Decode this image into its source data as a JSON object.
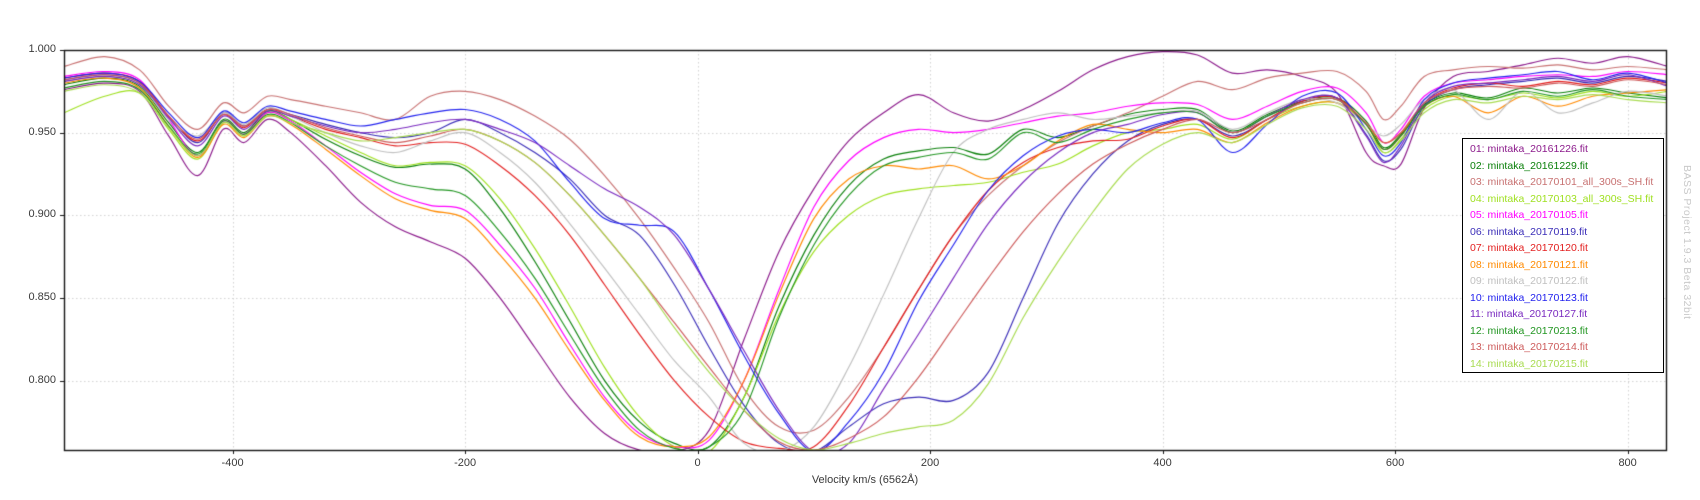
{
  "app": {
    "watermark": "BASS Project 1.9.3 Beta 32bit"
  },
  "chart_data": {
    "type": "line",
    "title": "",
    "xlabel": "Velocity km/s (6562Å)",
    "ylabel": "",
    "xlim": [
      -545,
      833
    ],
    "ylim": [
      0.758,
      1.0
    ],
    "xticks": [
      -400,
      -200,
      0,
      200,
      400,
      600,
      800
    ],
    "xtick_labels": [
      "-400",
      "-200",
      "0",
      "200",
      "400",
      "600",
      "800"
    ],
    "yticks": [
      1.0,
      0.95,
      0.9,
      0.85,
      0.8
    ],
    "ytick_labels": [
      "1.000",
      "0.950",
      "0.900",
      "0.850",
      "0.800"
    ],
    "grid": "dotted",
    "legend_position": "right-inside",
    "x": [
      -545,
      -510,
      -480,
      -455,
      -430,
      -408,
      -390,
      -370,
      -350,
      -320,
      -290,
      -260,
      -230,
      -200,
      -170,
      -140,
      -110,
      -80,
      -50,
      -20,
      10,
      40,
      70,
      100,
      130,
      160,
      190,
      220,
      250,
      280,
      310,
      340,
      370,
      400,
      430,
      460,
      490,
      520,
      550,
      575,
      590,
      605,
      625,
      650,
      680,
      710,
      740,
      770,
      800,
      835
    ],
    "series": [
      {
        "name": "01: mintaka_20161226.fit",
        "color": "#8B1A8B",
        "values": [
          0.976,
          0.98,
          0.975,
          0.948,
          0.924,
          0.952,
          0.944,
          0.958,
          0.95,
          0.93,
          0.908,
          0.893,
          0.884,
          0.874,
          0.85,
          0.82,
          0.79,
          0.768,
          0.758,
          0.757,
          0.77,
          0.825,
          0.878,
          0.916,
          0.945,
          0.962,
          0.973,
          0.962,
          0.957,
          0.964,
          0.975,
          0.988,
          0.996,
          0.999,
          0.997,
          0.986,
          0.988,
          0.984,
          0.974,
          0.938,
          0.93,
          0.931,
          0.965,
          0.984,
          0.987,
          0.991,
          0.995,
          0.992,
          0.996,
          0.99
        ]
      },
      {
        "name": "02: mintaka_20161229.fit",
        "color": "#0B800B",
        "values": [
          0.979,
          0.983,
          0.978,
          0.956,
          0.938,
          0.958,
          0.95,
          0.963,
          0.958,
          0.946,
          0.936,
          0.929,
          0.931,
          0.928,
          0.904,
          0.872,
          0.836,
          0.8,
          0.775,
          0.762,
          0.76,
          0.79,
          0.845,
          0.888,
          0.918,
          0.934,
          0.939,
          0.941,
          0.937,
          0.952,
          0.947,
          0.954,
          0.961,
          0.964,
          0.964,
          0.951,
          0.961,
          0.969,
          0.971,
          0.957,
          0.941,
          0.949,
          0.967,
          0.974,
          0.971,
          0.977,
          0.974,
          0.977,
          0.974,
          0.971
        ]
      },
      {
        "name": "03: mintaka_20170101_all_300s_SH.fit",
        "color": "#C87272",
        "values": [
          0.99,
          0.996,
          0.988,
          0.966,
          0.952,
          0.968,
          0.962,
          0.972,
          0.97,
          0.966,
          0.962,
          0.958,
          0.972,
          0.975,
          0.97,
          0.96,
          0.946,
          0.924,
          0.898,
          0.868,
          0.835,
          0.795,
          0.772,
          0.77,
          0.79,
          0.82,
          0.855,
          0.888,
          0.912,
          0.93,
          0.944,
          0.954,
          0.962,
          0.972,
          0.981,
          0.976,
          0.983,
          0.986,
          0.987,
          0.975,
          0.958,
          0.966,
          0.984,
          0.988,
          0.99,
          0.989,
          0.991,
          0.988,
          0.99,
          0.988
        ]
      },
      {
        "name": "04: mintaka_20170103_all_300s_SH.fit",
        "color": "#9FE020",
        "values": [
          0.962,
          0.972,
          0.974,
          0.952,
          0.934,
          0.956,
          0.948,
          0.962,
          0.958,
          0.948,
          0.938,
          0.93,
          0.932,
          0.93,
          0.91,
          0.88,
          0.845,
          0.808,
          0.778,
          0.76,
          0.757,
          0.79,
          0.84,
          0.878,
          0.9,
          0.912,
          0.916,
          0.918,
          0.92,
          0.926,
          0.931,
          0.942,
          0.95,
          0.952,
          0.955,
          0.946,
          0.958,
          0.966,
          0.968,
          0.955,
          0.938,
          0.946,
          0.964,
          0.972,
          0.97,
          0.974,
          0.971,
          0.975,
          0.972,
          0.975
        ]
      },
      {
        "name": "05: mintaka_20170105.fit",
        "color": "#FF00FF",
        "values": [
          0.984,
          0.987,
          0.982,
          0.958,
          0.936,
          0.957,
          0.949,
          0.962,
          0.957,
          0.942,
          0.926,
          0.913,
          0.906,
          0.903,
          0.882,
          0.856,
          0.822,
          0.79,
          0.768,
          0.76,
          0.764,
          0.8,
          0.855,
          0.905,
          0.933,
          0.947,
          0.952,
          0.95,
          0.952,
          0.956,
          0.96,
          0.962,
          0.966,
          0.968,
          0.967,
          0.958,
          0.966,
          0.975,
          0.977,
          0.962,
          0.944,
          0.952,
          0.972,
          0.98,
          0.982,
          0.984,
          0.985,
          0.984,
          0.987,
          0.985
        ]
      },
      {
        "name": "06: mintaka_20170119.fit",
        "color": "#3B2EB8",
        "values": [
          0.982,
          0.985,
          0.98,
          0.96,
          0.944,
          0.962,
          0.954,
          0.964,
          0.961,
          0.955,
          0.95,
          0.947,
          0.95,
          0.958,
          0.95,
          0.938,
          0.922,
          0.9,
          0.888,
          0.858,
          0.82,
          0.785,
          0.762,
          0.757,
          0.772,
          0.786,
          0.79,
          0.788,
          0.805,
          0.85,
          0.895,
          0.925,
          0.945,
          0.955,
          0.958,
          0.948,
          0.958,
          0.969,
          0.971,
          0.949,
          0.933,
          0.94,
          0.966,
          0.976,
          0.979,
          0.981,
          0.983,
          0.98,
          0.984,
          0.981
        ]
      },
      {
        "name": "07: mintaka_20170120.fit",
        "color": "#E32020",
        "values": [
          0.983,
          0.986,
          0.981,
          0.96,
          0.945,
          0.961,
          0.953,
          0.964,
          0.96,
          0.952,
          0.947,
          0.942,
          0.944,
          0.943,
          0.93,
          0.912,
          0.888,
          0.858,
          0.828,
          0.8,
          0.778,
          0.763,
          0.759,
          0.76,
          0.785,
          0.82,
          0.855,
          0.888,
          0.915,
          0.932,
          0.941,
          0.945,
          0.946,
          0.954,
          0.958,
          0.947,
          0.958,
          0.969,
          0.971,
          0.955,
          0.94,
          0.948,
          0.968,
          0.977,
          0.98,
          0.978,
          0.981,
          0.979,
          0.983,
          0.98
        ]
      },
      {
        "name": "08: mintaka_20170121.fit",
        "color": "#FF8A00",
        "values": [
          0.98,
          0.983,
          0.977,
          0.954,
          0.935,
          0.955,
          0.947,
          0.96,
          0.955,
          0.94,
          0.924,
          0.91,
          0.903,
          0.898,
          0.876,
          0.85,
          0.818,
          0.788,
          0.766,
          0.76,
          0.766,
          0.8,
          0.852,
          0.898,
          0.922,
          0.93,
          0.928,
          0.93,
          0.922,
          0.93,
          0.945,
          0.955,
          0.952,
          0.95,
          0.952,
          0.944,
          0.956,
          0.966,
          0.968,
          0.955,
          0.944,
          0.95,
          0.966,
          0.972,
          0.962,
          0.972,
          0.966,
          0.972,
          0.974,
          0.976
        ]
      },
      {
        "name": "09: mintaka_20170122.fit",
        "color": "#C0C0C0",
        "values": [
          0.981,
          0.984,
          0.979,
          0.958,
          0.948,
          0.962,
          0.955,
          0.965,
          0.96,
          0.95,
          0.942,
          0.938,
          0.945,
          0.95,
          0.938,
          0.92,
          0.895,
          0.868,
          0.84,
          0.812,
          0.79,
          0.762,
          0.757,
          0.772,
          0.808,
          0.852,
          0.898,
          0.938,
          0.952,
          0.958,
          0.962,
          0.958,
          0.96,
          0.962,
          0.963,
          0.952,
          0.962,
          0.97,
          0.968,
          0.955,
          0.948,
          0.955,
          0.97,
          0.976,
          0.958,
          0.975,
          0.962,
          0.968,
          0.975,
          0.972
        ]
      },
      {
        "name": "10: mintaka_20170123.fit",
        "color": "#2222EE",
        "values": [
          0.983,
          0.986,
          0.981,
          0.962,
          0.947,
          0.963,
          0.956,
          0.966,
          0.963,
          0.958,
          0.954,
          0.958,
          0.962,
          0.964,
          0.958,
          0.945,
          0.92,
          0.898,
          0.894,
          0.89,
          0.855,
          0.815,
          0.78,
          0.757,
          0.775,
          0.805,
          0.848,
          0.882,
          0.915,
          0.936,
          0.948,
          0.952,
          0.95,
          0.956,
          0.958,
          0.938,
          0.955,
          0.972,
          0.974,
          0.952,
          0.936,
          0.944,
          0.97,
          0.98,
          0.983,
          0.985,
          0.987,
          0.982,
          0.986,
          0.98
        ]
      },
      {
        "name": "11: mintaka_20170127.fit",
        "color": "#7A2BC0",
        "values": [
          0.981,
          0.984,
          0.979,
          0.959,
          0.942,
          0.96,
          0.952,
          0.963,
          0.96,
          0.954,
          0.95,
          0.952,
          0.956,
          0.958,
          0.952,
          0.944,
          0.93,
          0.916,
          0.905,
          0.888,
          0.855,
          0.818,
          0.782,
          0.757,
          0.762,
          0.795,
          0.828,
          0.862,
          0.895,
          0.92,
          0.938,
          0.95,
          0.955,
          0.961,
          0.962,
          0.95,
          0.96,
          0.97,
          0.971,
          0.948,
          0.932,
          0.942,
          0.968,
          0.978,
          0.98,
          0.982,
          0.984,
          0.981,
          0.985,
          0.978
        ]
      },
      {
        "name": "12: mintaka_20170213.fit",
        "color": "#229622",
        "values": [
          0.977,
          0.981,
          0.976,
          0.954,
          0.937,
          0.957,
          0.949,
          0.961,
          0.956,
          0.942,
          0.93,
          0.92,
          0.916,
          0.912,
          0.89,
          0.862,
          0.828,
          0.795,
          0.77,
          0.759,
          0.76,
          0.782,
          0.838,
          0.882,
          0.912,
          0.93,
          0.935,
          0.938,
          0.934,
          0.95,
          0.944,
          0.952,
          0.958,
          0.962,
          0.962,
          0.95,
          0.96,
          0.968,
          0.97,
          0.955,
          0.94,
          0.948,
          0.966,
          0.973,
          0.97,
          0.975,
          0.972,
          0.976,
          0.972,
          0.97
        ]
      },
      {
        "name": "13: mintaka_20170214.fit",
        "color": "#CD5C5C",
        "values": [
          0.982,
          0.985,
          0.98,
          0.96,
          0.946,
          0.961,
          0.954,
          0.964,
          0.961,
          0.953,
          0.948,
          0.944,
          0.948,
          0.952,
          0.945,
          0.932,
          0.912,
          0.888,
          0.862,
          0.835,
          0.808,
          0.782,
          0.763,
          0.758,
          0.765,
          0.778,
          0.802,
          0.832,
          0.862,
          0.89,
          0.913,
          0.931,
          0.943,
          0.952,
          0.958,
          0.95,
          0.958,
          0.968,
          0.97,
          0.956,
          0.944,
          0.95,
          0.968,
          0.976,
          0.978,
          0.977,
          0.98,
          0.978,
          0.982,
          0.979
        ]
      },
      {
        "name": "14: mintaka_20170215.fit",
        "color": "#A8DB50",
        "values": [
          0.975,
          0.979,
          0.974,
          0.953,
          0.936,
          0.956,
          0.948,
          0.96,
          0.956,
          0.95,
          0.945,
          0.947,
          0.95,
          0.952,
          0.945,
          0.932,
          0.912,
          0.888,
          0.862,
          0.832,
          0.805,
          0.782,
          0.765,
          0.758,
          0.762,
          0.768,
          0.772,
          0.776,
          0.798,
          0.838,
          0.872,
          0.902,
          0.928,
          0.943,
          0.95,
          0.944,
          0.955,
          0.965,
          0.966,
          0.952,
          0.938,
          0.945,
          0.962,
          0.97,
          0.968,
          0.972,
          0.97,
          0.973,
          0.97,
          0.968
        ]
      }
    ]
  }
}
